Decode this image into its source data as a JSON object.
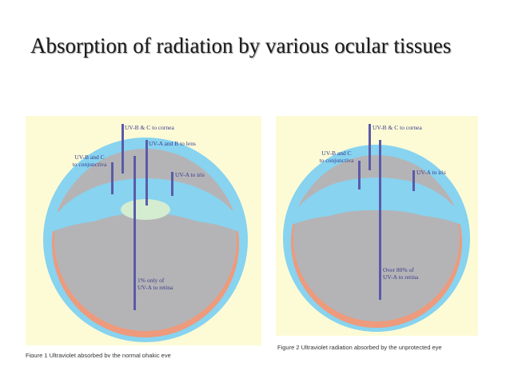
{
  "slide": {
    "title": "Absorption of radiation by various ocular tissues"
  },
  "figure_left": {
    "labels": {
      "cornea": "UV-B & C to cornea",
      "conjunctiva_line1": "UV-B and C",
      "conjunctiva_line2": "to conjunctiva",
      "lens": "UV-A and B to lens",
      "iris": "UV-A to iris",
      "retina_line1": "1% only of",
      "retina_line2": "UV-A to retina"
    },
    "caption": "Figure 1 Ultraviolet absorbed by the normal phakic eye"
  },
  "figure_right": {
    "labels": {
      "cornea": "UV-B & C to cornea",
      "conjunctiva_line1": "UV-B and C",
      "conjunctiva_line2": "to conjunctiva",
      "iris": "UV-A to iris",
      "retina_line1": "Over 80% of",
      "retina_line2": "UV-A to retina"
    },
    "caption": "Figure 2 Ultraviolet radiation absorbed by the unprotected eye"
  },
  "colors": {
    "panel_background": "#fdfbd6",
    "cornea_blue": "#87d3f0",
    "eye_interior": "#b4b4b7",
    "retina_orange": "#ee9a7c",
    "lens_green": "#d4ecd0",
    "ray_purple": "#5a5aa8"
  }
}
